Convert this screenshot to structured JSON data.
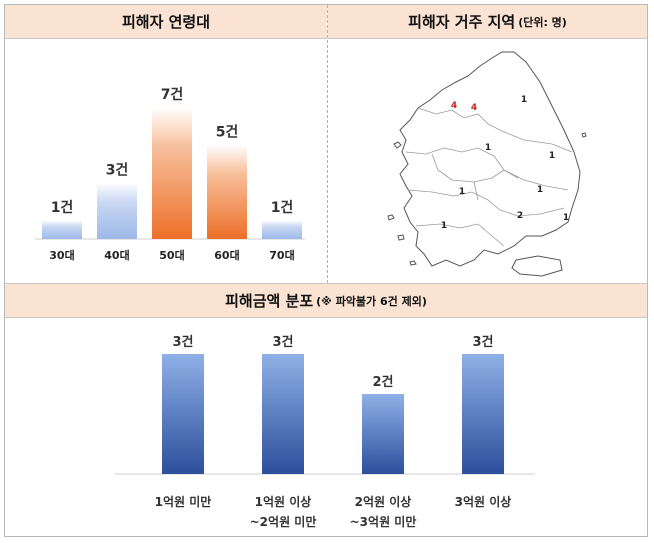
{
  "sections": {
    "age_title": "피해자 연령대",
    "region_title": "피해자 거주 지역",
    "region_unit": "(단위: 명)",
    "amount_title": "피해금액 분포",
    "amount_note": "(※ 파악불가 6건 제외)"
  },
  "chart_data": [
    {
      "type": "bar",
      "title": "피해자 연령대",
      "categories": [
        "30대",
        "40대",
        "50대",
        "60대",
        "70대"
      ],
      "values": [
        1,
        3,
        7,
        5,
        1
      ],
      "value_labels": [
        "1건",
        "3건",
        "7건",
        "5건",
        "1건"
      ],
      "highlight": [
        false,
        false,
        true,
        true,
        false
      ],
      "colors": {
        "normal": "#9db8e8",
        "highlight": "#ef7a36"
      },
      "ylim": [
        0,
        7
      ]
    },
    {
      "type": "bar",
      "title": "피해금액 분포",
      "categories": [
        "1억원 미만",
        "1억원 이상\n~2억원 미만",
        "2억원 이상\n~3억원 미만",
        "3억원 이상"
      ],
      "values": [
        3,
        3,
        2,
        3
      ],
      "value_labels": [
        "3건",
        "3건",
        "2건",
        "3건"
      ],
      "colors": {
        "top": "#8fb0e6",
        "bottom": "#2d4f9c"
      },
      "ylim": [
        0,
        3
      ]
    }
  ],
  "map": {
    "labels": [
      {
        "text": "4",
        "color": "#cc2222"
      },
      {
        "text": "4",
        "color": "#cc2222"
      },
      {
        "text": "1",
        "color": "#222222"
      },
      {
        "text": "1",
        "color": "#222222"
      },
      {
        "text": "1",
        "color": "#222222"
      },
      {
        "text": "1",
        "color": "#222222"
      },
      {
        "text": "1",
        "color": "#222222"
      },
      {
        "text": "2",
        "color": "#222222"
      },
      {
        "text": "1",
        "color": "#222222"
      },
      {
        "text": "1",
        "color": "#222222"
      }
    ]
  }
}
